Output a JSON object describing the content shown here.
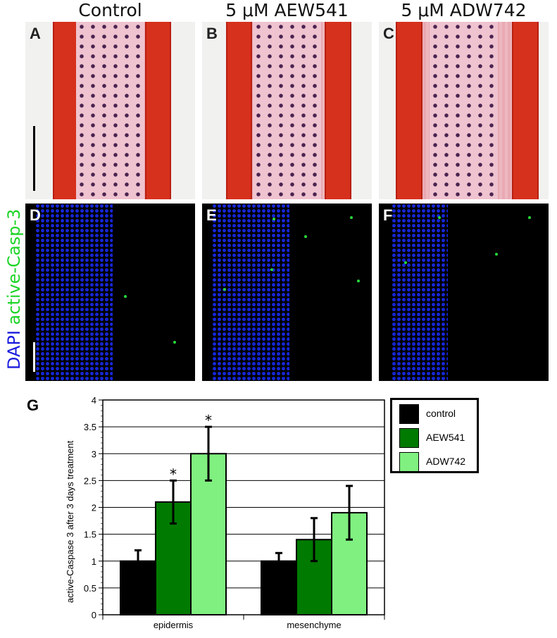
{
  "columns": [
    {
      "title": "Control"
    },
    {
      "title": "5 μM AEW541"
    },
    {
      "title": "5 μM ADW742"
    }
  ],
  "panels": {
    "he": [
      "A",
      "B",
      "C"
    ],
    "fluor": [
      "D",
      "E",
      "F"
    ]
  },
  "side_label": {
    "dapi": "DAPI",
    "casp": "active-Casp-3"
  },
  "colors": {
    "control": "#000000",
    "aew541": "#007a00",
    "adw742": "#80f080"
  },
  "chart_data": {
    "type": "bar",
    "panel_label": "G",
    "categories": [
      "epidermis",
      "mesenchyme"
    ],
    "series": [
      {
        "name": "control",
        "color": "#000000",
        "values": [
          1.0,
          1.0
        ],
        "errors": [
          0.2,
          0.15
        ],
        "significant": [
          false,
          false
        ]
      },
      {
        "name": "AEW541",
        "color": "#007a00",
        "values": [
          2.1,
          1.4
        ],
        "errors": [
          0.4,
          0.4
        ],
        "significant": [
          true,
          false
        ]
      },
      {
        "name": "ADW742",
        "color": "#80f080",
        "values": [
          3.0,
          1.9
        ],
        "errors": [
          0.5,
          0.5
        ],
        "significant": [
          true,
          false
        ]
      }
    ],
    "ylabel": "active-Caspase 3 after 3 days treatment",
    "ylim": [
      0,
      4
    ],
    "yticks": [
      "0",
      "0.5",
      "1",
      "1.5",
      "2",
      "2.5",
      "3",
      "3.5",
      "4"
    ],
    "grid": true,
    "significance_marker": "*",
    "legend_position": "right"
  }
}
